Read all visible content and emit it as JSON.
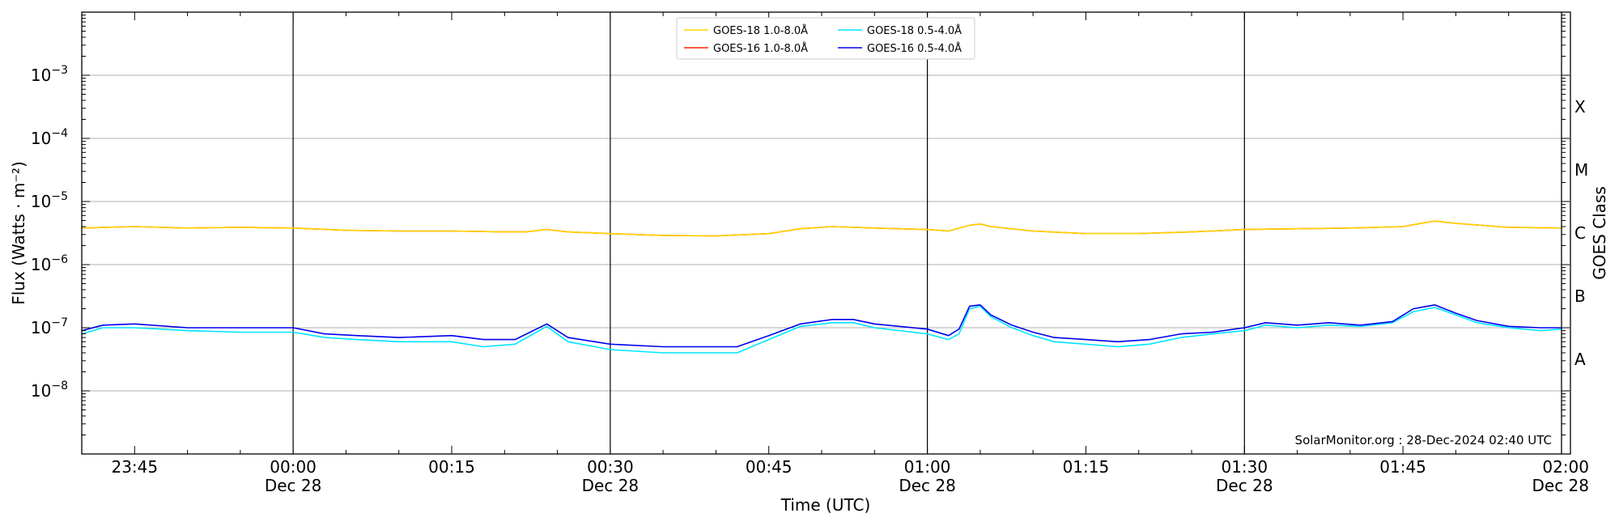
{
  "chart_data": {
    "type": "line",
    "xlabel": "Time (UTC)",
    "ylabel": "Flux (Watts · m⁻²)",
    "ylabel_right": "GOES Class",
    "credit": "SolarMonitor.org : 28-Dec-2024 02:40 UTC",
    "y_scale": "log",
    "ylim": [
      1e-09,
      0.01
    ],
    "xlim": [
      "23:40",
      "02:00"
    ],
    "grid": "horizontal at decades",
    "legend_position": "top-center",
    "y_ticks": [
      {
        "value": 1e-08,
        "base": "10",
        "exp": "−8"
      },
      {
        "value": 1e-07,
        "base": "10",
        "exp": "−7"
      },
      {
        "value": 1e-06,
        "base": "10",
        "exp": "−6"
      },
      {
        "value": 1e-05,
        "base": "10",
        "exp": "−5"
      },
      {
        "value": 0.0001,
        "base": "10",
        "exp": "−4"
      },
      {
        "value": 0.001,
        "base": "10",
        "exp": "−3"
      }
    ],
    "x_ticks": [
      {
        "time": "23:45",
        "label": "23:45",
        "sublabel": ""
      },
      {
        "time": "00:00",
        "label": "00:00",
        "sublabel": "Dec 28"
      },
      {
        "time": "00:15",
        "label": "00:15",
        "sublabel": ""
      },
      {
        "time": "00:30",
        "label": "00:30",
        "sublabel": "Dec 28"
      },
      {
        "time": "00:45",
        "label": "00:45",
        "sublabel": ""
      },
      {
        "time": "01:00",
        "label": "01:00",
        "sublabel": "Dec 28"
      },
      {
        "time": "01:15",
        "label": "01:15",
        "sublabel": ""
      },
      {
        "time": "01:30",
        "label": "01:30",
        "sublabel": "Dec 28"
      },
      {
        "time": "01:45",
        "label": "01:45",
        "sublabel": ""
      },
      {
        "time": "02:00",
        "label": "02:00",
        "sublabel": "Dec 28"
      }
    ],
    "vertical_markers": [
      "00:00",
      "00:30",
      "01:00",
      "01:30"
    ],
    "goes_classes": [
      {
        "label": "A",
        "level": 1e-08
      },
      {
        "label": "B",
        "level": 1e-07
      },
      {
        "label": "C",
        "level": 1e-06
      },
      {
        "label": "M",
        "level": 1e-05
      },
      {
        "label": "X",
        "level": 0.0001
      }
    ],
    "legend": [
      {
        "name": "GOES-18 1.0-8.0Å",
        "color": "#ffd700"
      },
      {
        "name": "GOES-18 0.5-4.0Å",
        "color": "#00e5ff"
      },
      {
        "name": "GOES-16 1.0-8.0Å",
        "color": "#ff2200"
      },
      {
        "name": "GOES-16 0.5-4.0Å",
        "color": "#0000ee"
      }
    ],
    "series": [
      {
        "name": "GOES-16 1.0-8.0Å",
        "color": "#ff2200",
        "x": [
          "23:40",
          "23:45",
          "23:50",
          "23:55",
          "00:00",
          "00:05",
          "00:10",
          "00:15",
          "00:20",
          "00:22",
          "00:24",
          "00:26",
          "00:30",
          "00:35",
          "00:40",
          "00:45",
          "00:48",
          "00:51",
          "00:55",
          "01:00",
          "01:02",
          "01:04",
          "01:05",
          "01:06",
          "01:10",
          "01:15",
          "01:20",
          "01:25",
          "01:30",
          "01:35",
          "01:40",
          "01:45",
          "01:47",
          "01:48",
          "01:50",
          "01:55",
          "02:00"
        ],
        "y": [
          3.8e-06,
          4e-06,
          3.8e-06,
          3.9e-06,
          3.8e-06,
          3.5e-06,
          3.4e-06,
          3.4e-06,
          3.3e-06,
          3.3e-06,
          3.6e-06,
          3.3e-06,
          3.1e-06,
          2.9e-06,
          2.85e-06,
          3.1e-06,
          3.7e-06,
          4e-06,
          3.8e-06,
          3.6e-06,
          3.4e-06,
          4.2e-06,
          4.4e-06,
          4e-06,
          3.4e-06,
          3.1e-06,
          3.1e-06,
          3.3e-06,
          3.6e-06,
          3.7e-06,
          3.8e-06,
          4e-06,
          4.6e-06,
          4.9e-06,
          4.5e-06,
          3.9e-06,
          3.8e-06
        ]
      },
      {
        "name": "GOES-18 1.0-8.0Å",
        "color": "#ffd700",
        "x": [
          "23:40",
          "23:45",
          "23:50",
          "23:55",
          "00:00",
          "00:05",
          "00:10",
          "00:15",
          "00:20",
          "00:22",
          "00:24",
          "00:26",
          "00:30",
          "00:35",
          "00:40",
          "00:45",
          "00:48",
          "00:51",
          "00:55",
          "01:00",
          "01:02",
          "01:04",
          "01:05",
          "01:06",
          "01:10",
          "01:15",
          "01:20",
          "01:25",
          "01:30",
          "01:35",
          "01:40",
          "01:45",
          "01:47",
          "01:48",
          "01:50",
          "01:55",
          "02:00"
        ],
        "y": [
          3.8e-06,
          4e-06,
          3.8e-06,
          3.9e-06,
          3.8e-06,
          3.5e-06,
          3.4e-06,
          3.4e-06,
          3.3e-06,
          3.3e-06,
          3.6e-06,
          3.3e-06,
          3.1e-06,
          2.9e-06,
          2.85e-06,
          3.1e-06,
          3.7e-06,
          4e-06,
          3.8e-06,
          3.6e-06,
          3.4e-06,
          4.2e-06,
          4.4e-06,
          4e-06,
          3.4e-06,
          3.1e-06,
          3.1e-06,
          3.3e-06,
          3.6e-06,
          3.7e-06,
          3.8e-06,
          4e-06,
          4.6e-06,
          4.9e-06,
          4.5e-06,
          3.9e-06,
          3.8e-06
        ]
      },
      {
        "name": "GOES-18 0.5-4.0Å",
        "color": "#00e5ff",
        "x": [
          "23:40",
          "23:42",
          "23:45",
          "23:50",
          "23:55",
          "00:00",
          "00:03",
          "00:06",
          "00:10",
          "00:15",
          "00:18",
          "00:21",
          "00:24",
          "00:26",
          "00:30",
          "00:35",
          "00:40",
          "00:42",
          "00:45",
          "00:48",
          "00:51",
          "00:53",
          "00:55",
          "01:00",
          "01:02",
          "01:03",
          "01:04",
          "01:05",
          "01:06",
          "01:08",
          "01:10",
          "01:12",
          "01:15",
          "01:18",
          "01:21",
          "01:24",
          "01:27",
          "01:30",
          "01:32",
          "01:35",
          "01:38",
          "01:41",
          "01:44",
          "01:46",
          "01:48",
          "01:50",
          "01:52",
          "01:55",
          "01:58",
          "02:00"
        ],
        "y": [
          8e-08,
          1e-07,
          1e-07,
          9e-08,
          8.5e-08,
          8.5e-08,
          7e-08,
          6.5e-08,
          6e-08,
          6e-08,
          5e-08,
          5.5e-08,
          1.05e-07,
          6e-08,
          4.5e-08,
          4e-08,
          4e-08,
          4e-08,
          6.5e-08,
          1.05e-07,
          1.2e-07,
          1.2e-07,
          1e-07,
          8e-08,
          6.5e-08,
          8e-08,
          2e-07,
          2.2e-07,
          1.5e-07,
          1e-07,
          7.5e-08,
          6e-08,
          5.5e-08,
          5e-08,
          5.5e-08,
          7e-08,
          8e-08,
          9e-08,
          1.1e-07,
          1e-07,
          1.1e-07,
          1.05e-07,
          1.2e-07,
          1.8e-07,
          2.1e-07,
          1.6e-07,
          1.2e-07,
          1e-07,
          9e-08,
          9.5e-08
        ]
      },
      {
        "name": "GOES-16 0.5-4.0Å",
        "color": "#0000ee",
        "x": [
          "23:40",
          "23:42",
          "23:45",
          "23:50",
          "23:55",
          "00:00",
          "00:03",
          "00:06",
          "00:10",
          "00:15",
          "00:18",
          "00:21",
          "00:24",
          "00:26",
          "00:30",
          "00:35",
          "00:40",
          "00:42",
          "00:45",
          "00:48",
          "00:51",
          "00:53",
          "00:55",
          "01:00",
          "01:02",
          "01:03",
          "01:04",
          "01:05",
          "01:06",
          "01:08",
          "01:10",
          "01:12",
          "01:15",
          "01:18",
          "01:21",
          "01:24",
          "01:27",
          "01:30",
          "01:32",
          "01:35",
          "01:38",
          "01:41",
          "01:44",
          "01:46",
          "01:48",
          "01:50",
          "01:52",
          "01:55",
          "01:58",
          "02:00"
        ],
        "y": [
          9e-08,
          1.1e-07,
          1.15e-07,
          1e-07,
          1e-07,
          1e-07,
          8e-08,
          7.5e-08,
          7e-08,
          7.5e-08,
          6.5e-08,
          6.5e-08,
          1.15e-07,
          7e-08,
          5.5e-08,
          5e-08,
          5e-08,
          5e-08,
          7.5e-08,
          1.15e-07,
          1.35e-07,
          1.35e-07,
          1.15e-07,
          9.5e-08,
          7.5e-08,
          9.5e-08,
          2.2e-07,
          2.3e-07,
          1.6e-07,
          1.1e-07,
          8.5e-08,
          7e-08,
          6.5e-08,
          6e-08,
          6.5e-08,
          8e-08,
          8.5e-08,
          1e-07,
          1.2e-07,
          1.1e-07,
          1.2e-07,
          1.1e-07,
          1.25e-07,
          2e-07,
          2.3e-07,
          1.7e-07,
          1.3e-07,
          1.05e-07,
          1e-07,
          1e-07
        ]
      }
    ]
  }
}
